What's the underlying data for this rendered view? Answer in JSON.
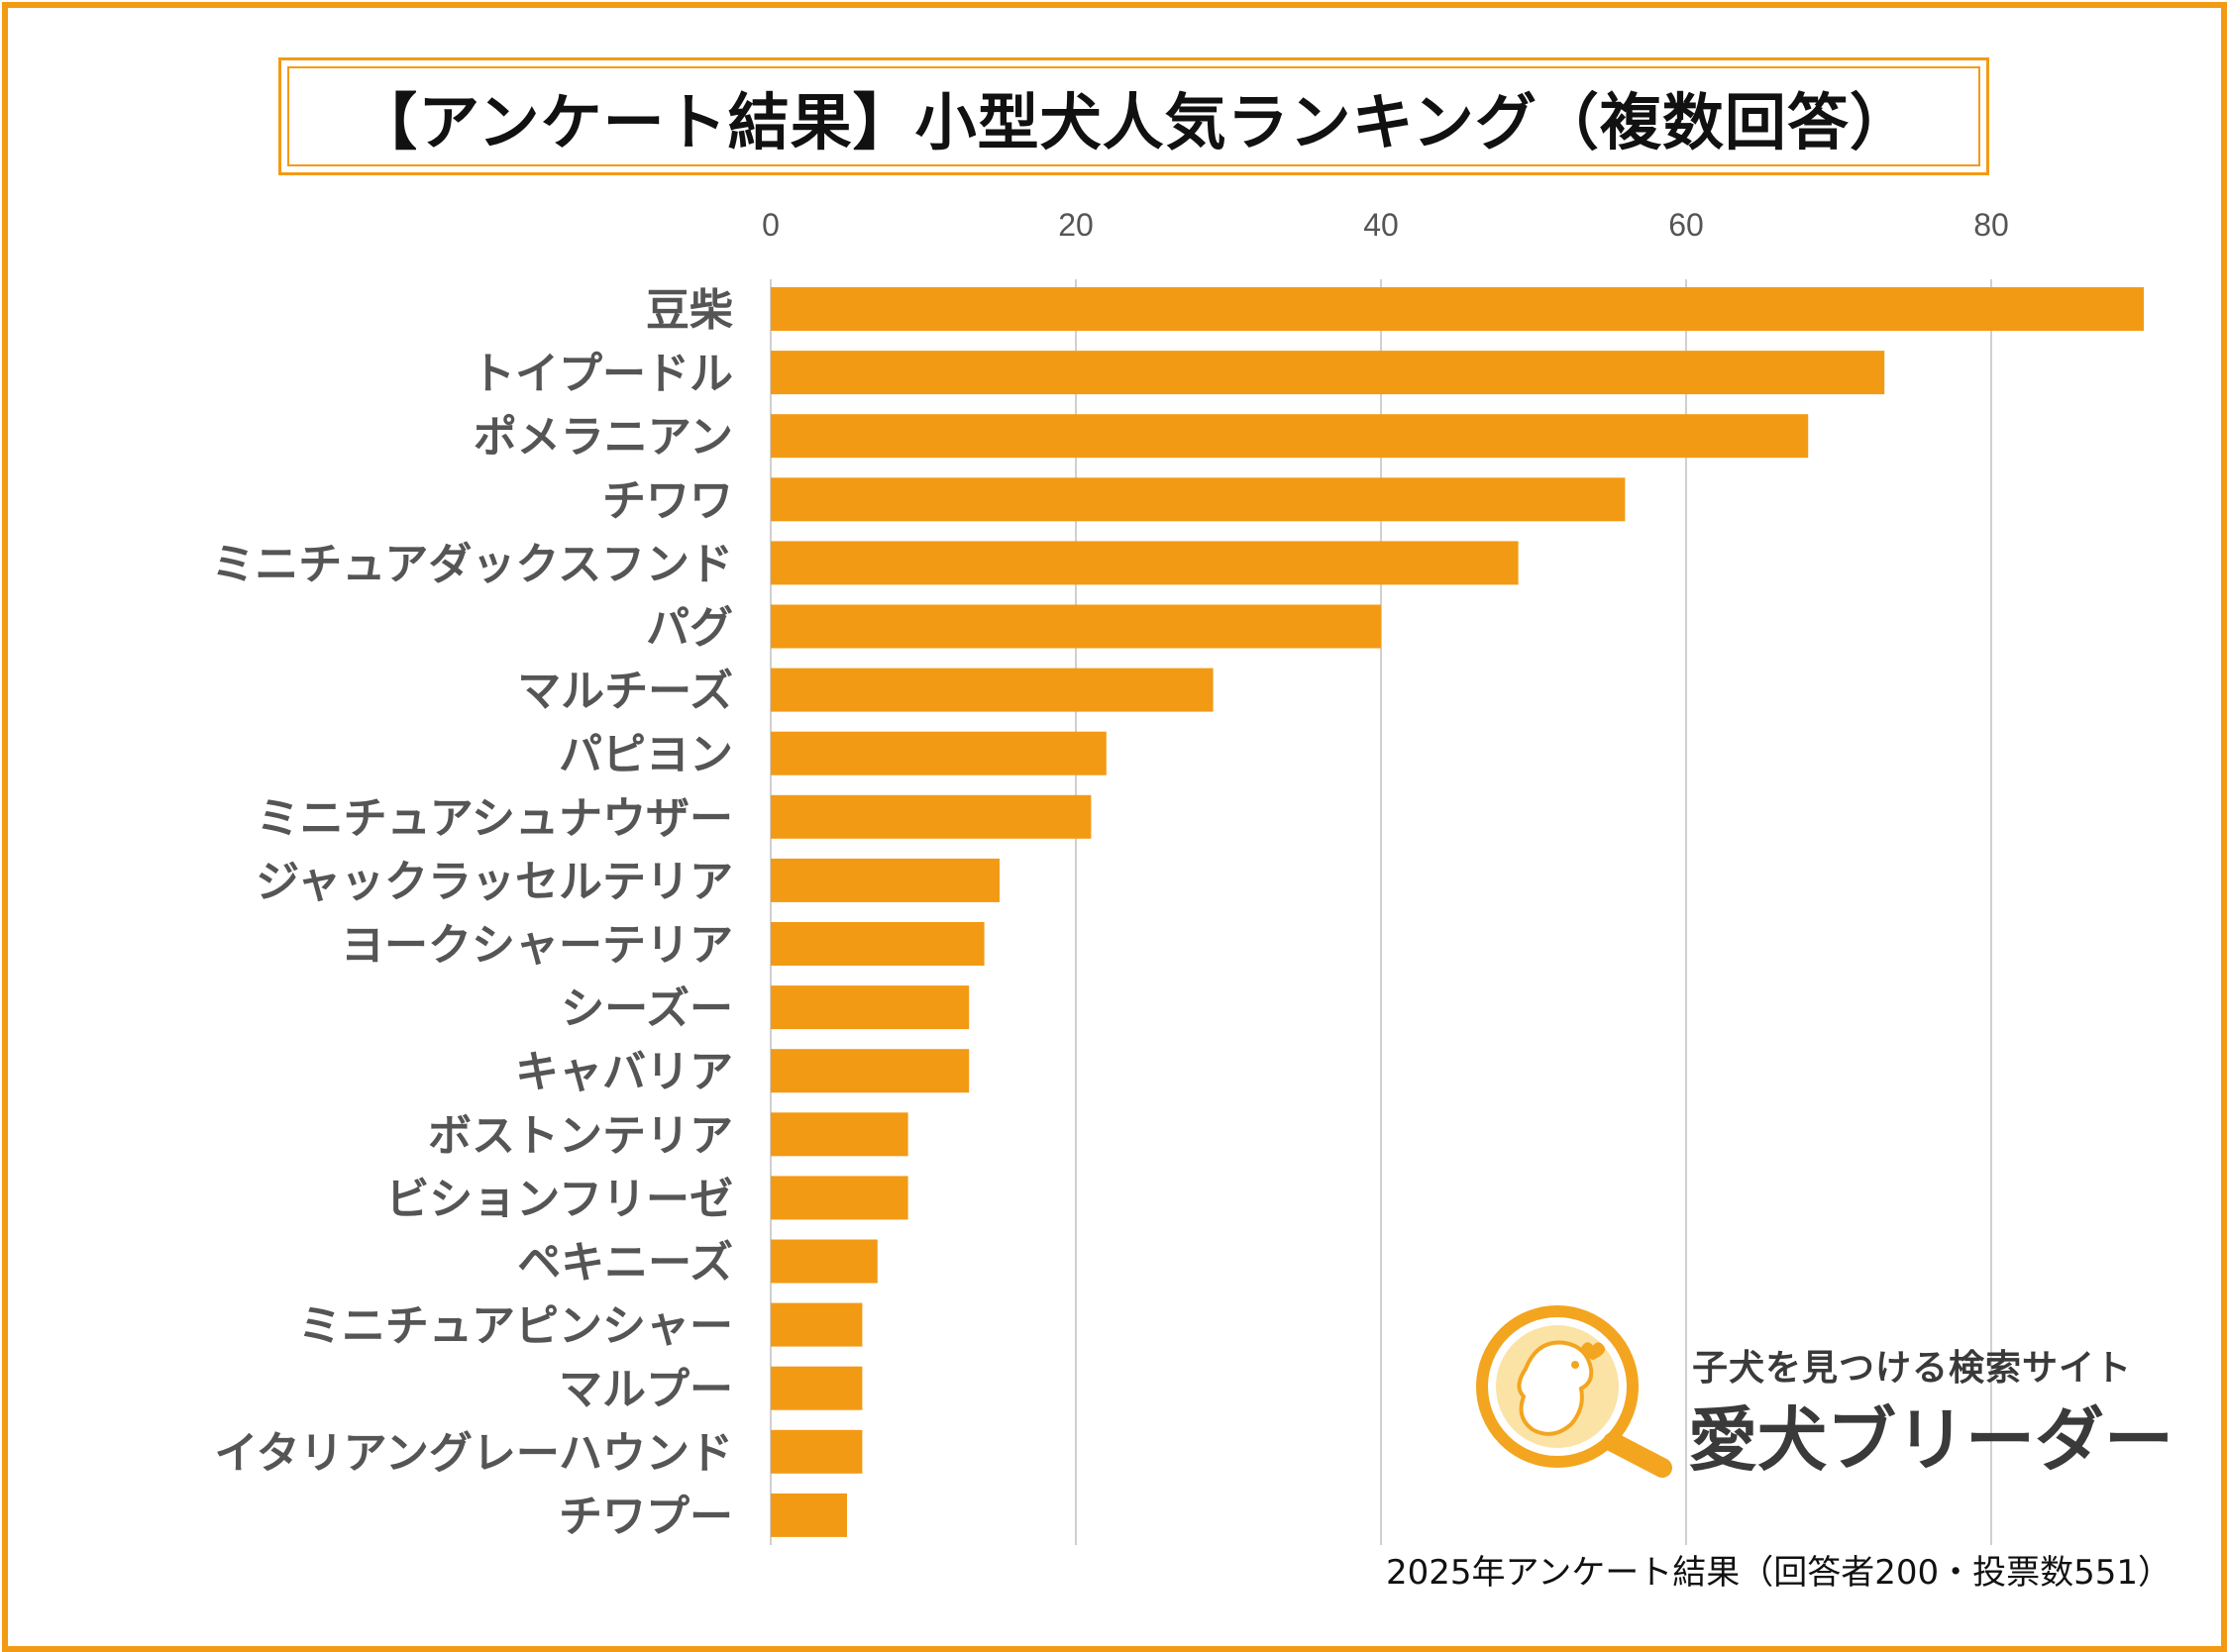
{
  "title": "【アンケート結果】小型犬人気ランキング（複数回答）",
  "footnote": "2025年アンケート結果（回答者200・投票数551）",
  "logo": {
    "tagline": "子犬を見つける検索サイト",
    "name": "愛犬ブリーダー"
  },
  "colors": {
    "bar": "#F39A14",
    "frame": "#F39A14",
    "grid": "#D0D0D0",
    "label": "#555555"
  },
  "chart_data": {
    "type": "bar",
    "orientation": "horizontal",
    "categories": [
      "豆柴",
      "トイプードル",
      "ポメラニアン",
      "チワワ",
      "ミニチュアダックスフンド",
      "パグ",
      "マルチーズ",
      "パピヨン",
      "ミニチュアシュナウザー",
      "ジャックラッセルテリア",
      "ヨークシャーテリア",
      "シーズー",
      "キャバリア",
      "ボストンテリア",
      "ビションフリーゼ",
      "ペキニーズ",
      "ミニチュアピンシャー",
      "マルプー",
      "イタリアングレーハウンド",
      "チワプー"
    ],
    "values": [
      90,
      73,
      68,
      56,
      49,
      40,
      29,
      22,
      21,
      15,
      14,
      13,
      13,
      9,
      9,
      7,
      6,
      6,
      6,
      5
    ],
    "xticks": [
      "0",
      "20",
      "40",
      "60",
      "80"
    ],
    "xlim": [
      0,
      90
    ],
    "axis_position": "top",
    "grid": true
  }
}
